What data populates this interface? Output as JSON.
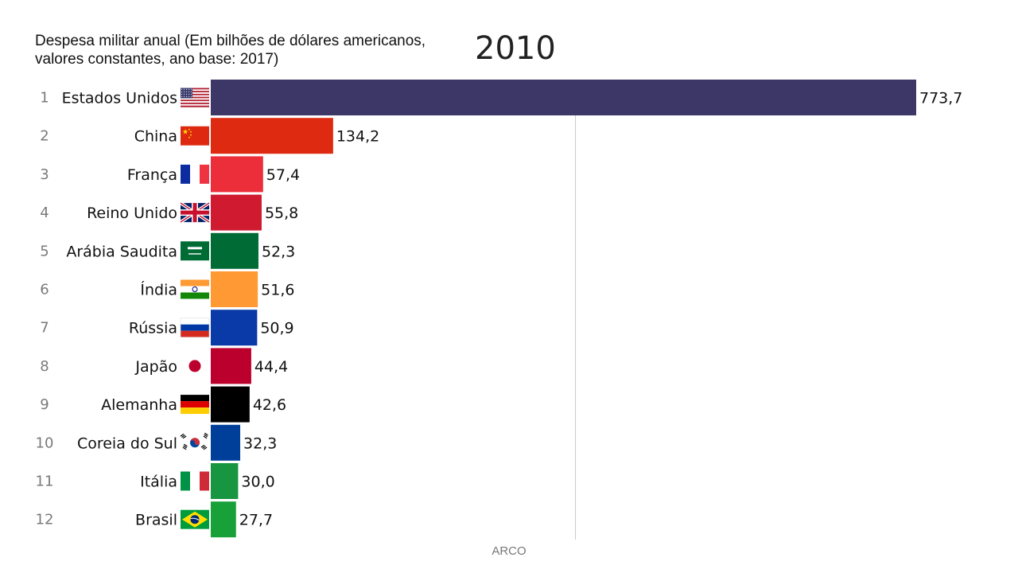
{
  "chart_data": {
    "type": "bar",
    "orientation": "horizontal",
    "title": "Despesa militar anual (Em bilhões de dólares americanos, valores constantes, ano base: 2017)",
    "year": "2010",
    "gridline_x": 400,
    "xlim": [
      0,
      773.7
    ],
    "categories": [
      "Estados Unidos",
      "China",
      "França",
      "Reino Unido",
      "Arábia Saudita",
      "Índia",
      "Rússia",
      "Japão",
      "Alemanha",
      "Coreia do Sul",
      "Itália",
      "Brasil"
    ],
    "ranks": [
      "1",
      "2",
      "3",
      "4",
      "5",
      "6",
      "7",
      "8",
      "9",
      "10",
      "11",
      "12"
    ],
    "values": [
      773.7,
      134.2,
      57.4,
      55.8,
      52.3,
      51.6,
      50.9,
      44.4,
      42.6,
      32.3,
      30.0,
      27.7
    ],
    "value_labels": [
      "773,7",
      "134,2",
      "57,4",
      "55,8",
      "52,3",
      "51,6",
      "50,9",
      "44,4",
      "42,6",
      "32,3",
      "30,0",
      "27,7"
    ],
    "colors": [
      "#3d3768",
      "#dd2a10",
      "#ec2d3a",
      "#cf1a2f",
      "#006b35",
      "#fe9933",
      "#0a3aa8",
      "#bc002d",
      "#000000",
      "#003f99",
      "#179540",
      "#18a039"
    ],
    "flags": [
      "us-flag-icon",
      "china-flag-icon",
      "france-flag-icon",
      "uk-flag-icon",
      "saudi-flag-icon",
      "india-flag-icon",
      "russia-flag-icon",
      "japan-flag-icon",
      "germany-flag-icon",
      "south-korea-flag-icon",
      "italy-flag-icon",
      "brazil-flag-icon"
    ]
  },
  "footer": "ARCO"
}
